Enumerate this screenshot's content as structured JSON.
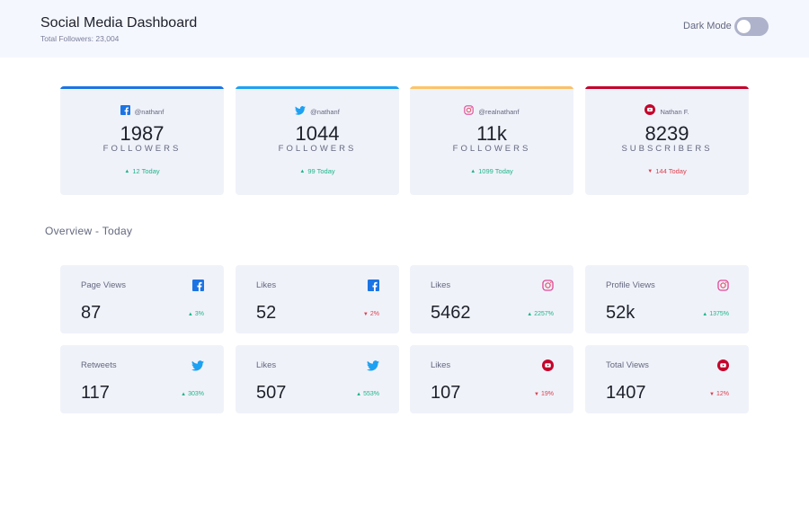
{
  "header": {
    "title": "Social Media Dashboard",
    "subtitle": "Total Followers: 23,004",
    "dark_mode_label": "Dark Mode",
    "dark_mode_on": false
  },
  "colors": {
    "facebook": "#1b74e4",
    "twitter": "#1da1f2",
    "instagram_a": "#fdc468",
    "instagram_b": "#df4996",
    "youtube": "#c4032b",
    "up": "#1eb589",
    "down": "#dc414c"
  },
  "cards": [
    {
      "platform": "facebook",
      "icon": "facebook-icon",
      "handle": "@nathanf",
      "count": "1987",
      "unit": "FOLLOWERS",
      "delta": "12 Today",
      "direction": "up"
    },
    {
      "platform": "twitter",
      "icon": "twitter-icon",
      "handle": "@nathanf",
      "count": "1044",
      "unit": "FOLLOWERS",
      "delta": "99 Today",
      "direction": "up"
    },
    {
      "platform": "instagram",
      "icon": "instagram-icon",
      "handle": "@realnathanf",
      "count": "11k",
      "unit": "FOLLOWERS",
      "delta": "1099 Today",
      "direction": "up"
    },
    {
      "platform": "youtube",
      "icon": "youtube-icon",
      "handle": "Nathan F.",
      "count": "8239",
      "unit": "SUBSCRIBERS",
      "delta": "144 Today",
      "direction": "down"
    }
  ],
  "overview": {
    "title": "Overview - Today",
    "items": [
      {
        "label": "Page Views",
        "icon": "facebook-icon",
        "value": "87",
        "delta": "3%",
        "direction": "up"
      },
      {
        "label": "Likes",
        "icon": "facebook-icon",
        "value": "52",
        "delta": "2%",
        "direction": "down"
      },
      {
        "label": "Likes",
        "icon": "instagram-icon",
        "value": "5462",
        "delta": "2257%",
        "direction": "up"
      },
      {
        "label": "Profile Views",
        "icon": "instagram-icon",
        "value": "52k",
        "delta": "1375%",
        "direction": "up"
      },
      {
        "label": "Retweets",
        "icon": "twitter-icon",
        "value": "117",
        "delta": "303%",
        "direction": "up"
      },
      {
        "label": "Likes",
        "icon": "twitter-icon",
        "value": "507",
        "delta": "553%",
        "direction": "up"
      },
      {
        "label": "Likes",
        "icon": "youtube-icon",
        "value": "107",
        "delta": "19%",
        "direction": "down"
      },
      {
        "label": "Total Views",
        "icon": "youtube-icon",
        "value": "1407",
        "delta": "12%",
        "direction": "down"
      }
    ]
  }
}
